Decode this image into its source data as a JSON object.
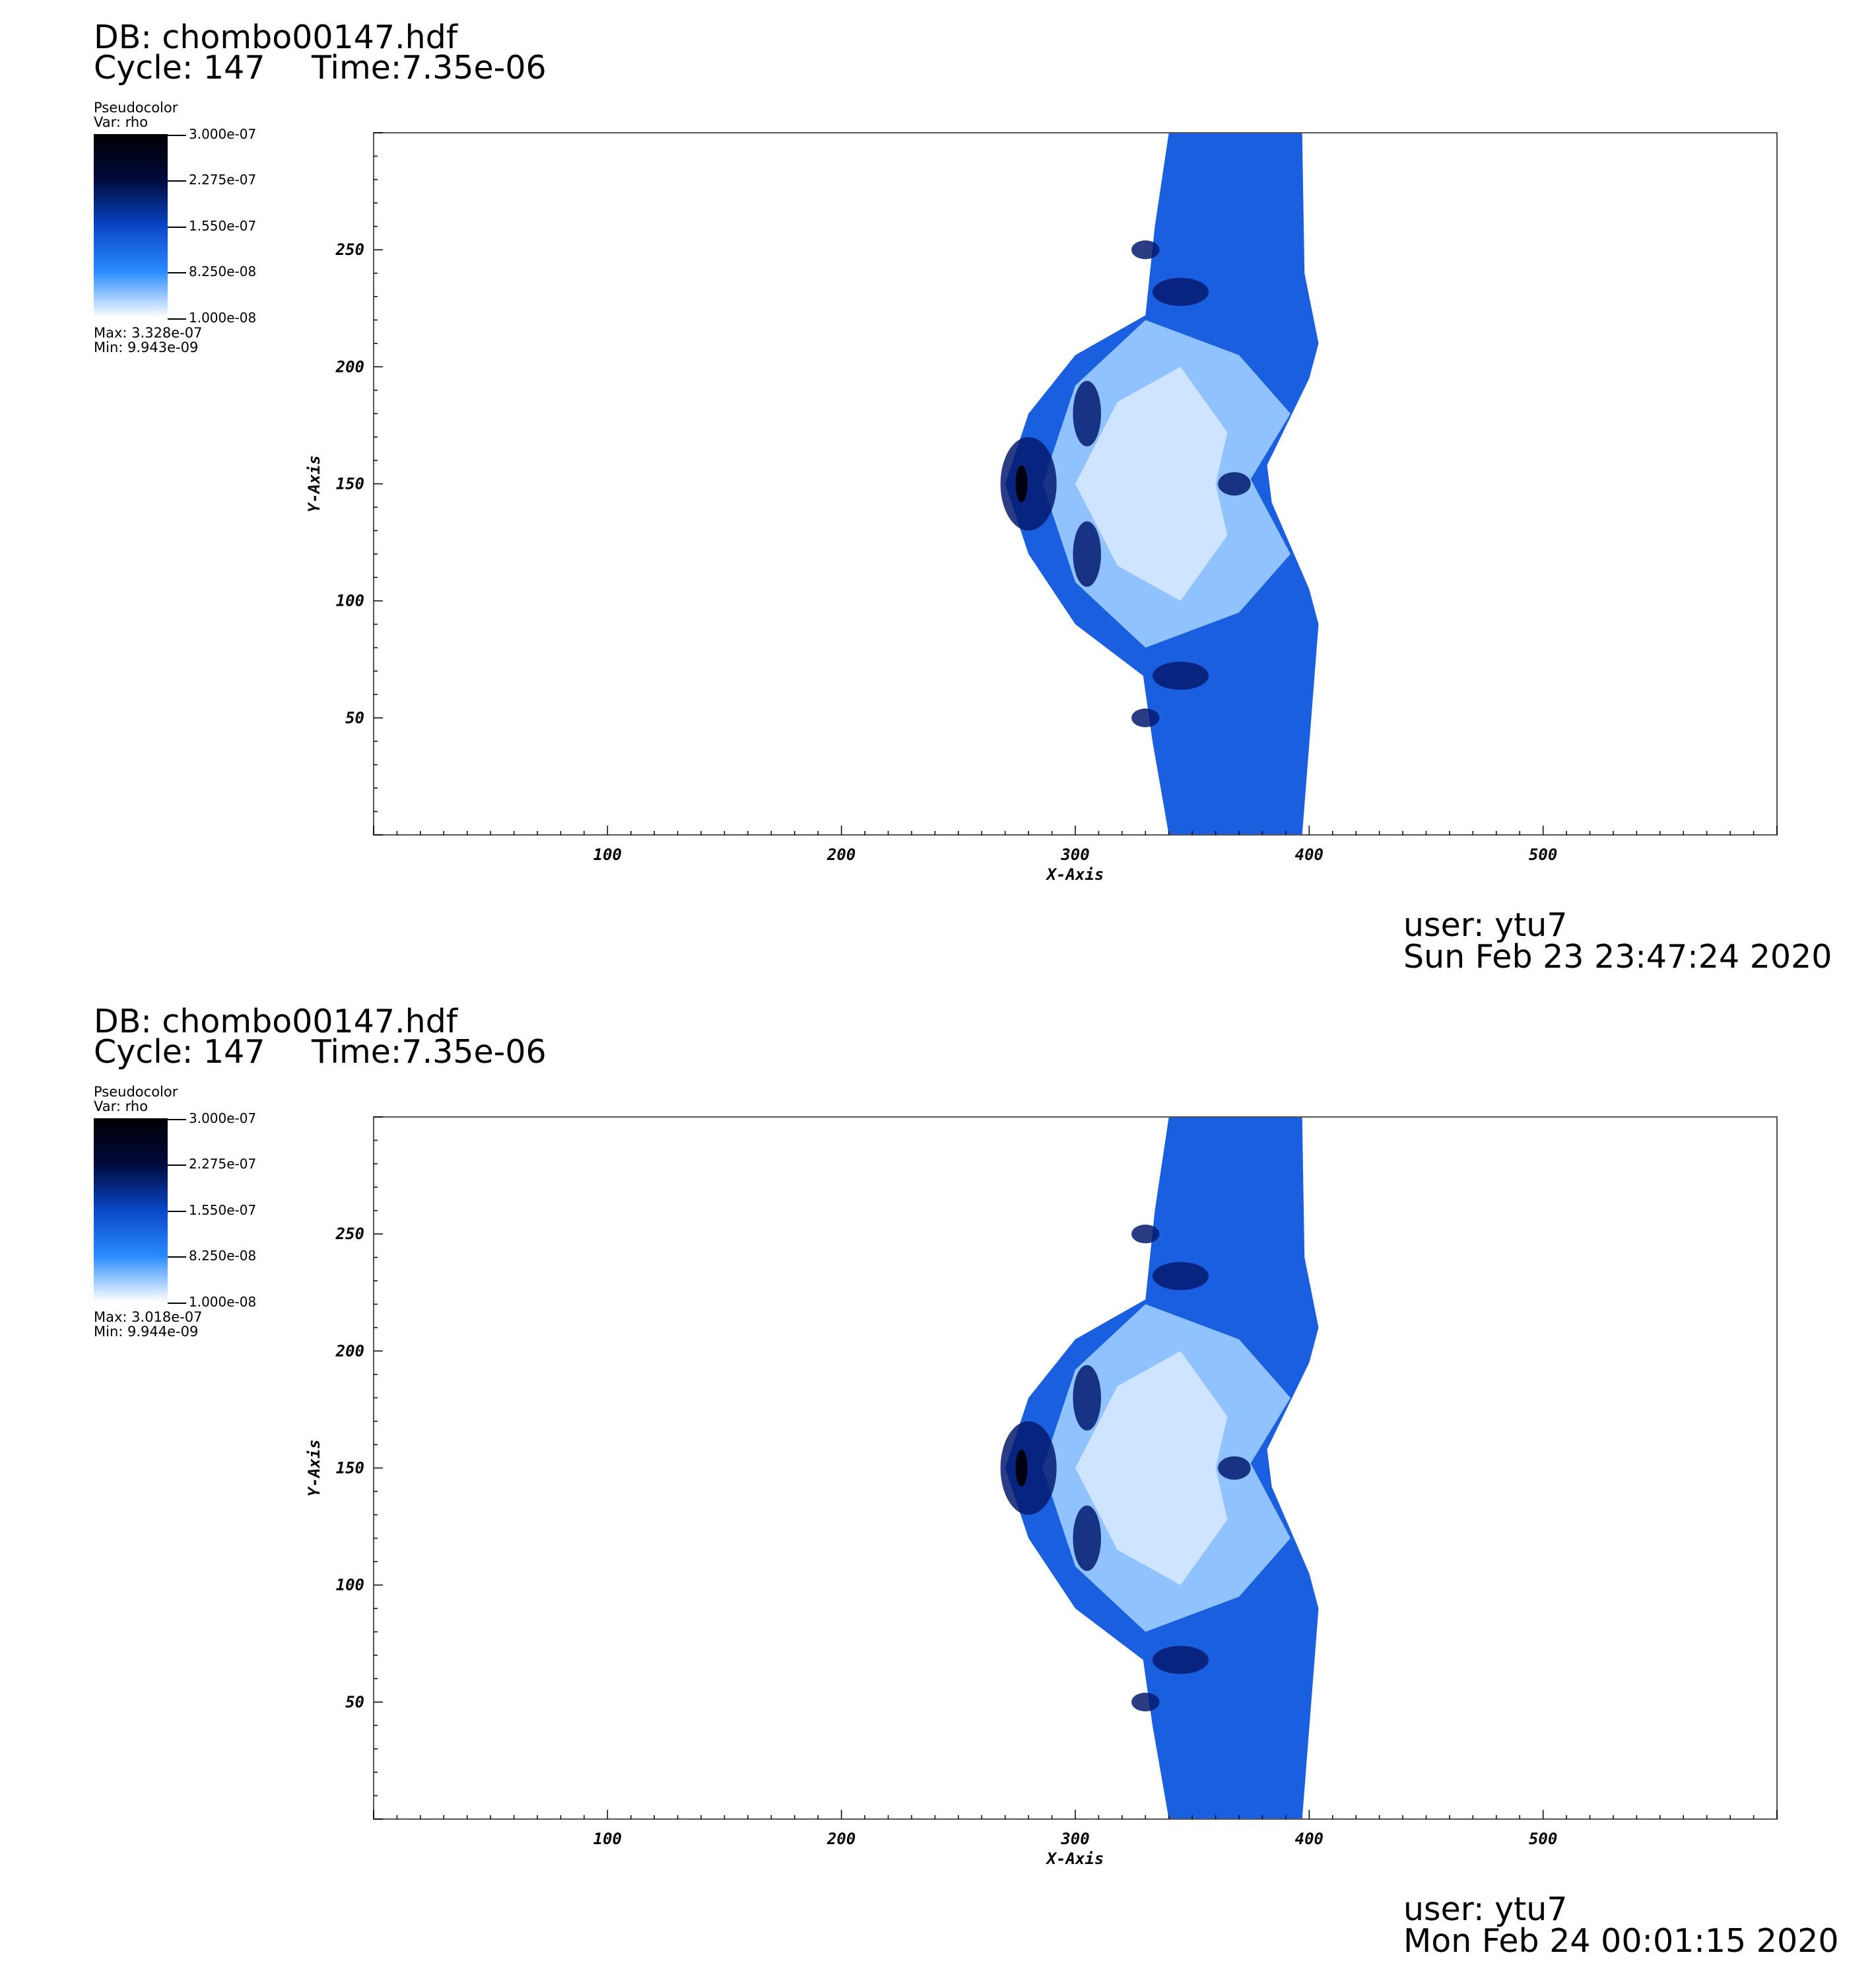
{
  "panels": [
    {
      "db": "DB: chombo00147.hdf",
      "cycle": "Cycle: 147",
      "time": "Time:7.35e-06",
      "legend": {
        "plot_type": "Pseudocolor",
        "var": "Var: rho",
        "ticks": [
          "3.000e-07",
          "2.275e-07",
          "1.550e-07",
          "8.250e-08",
          "1.000e-08"
        ],
        "max": "Max:  3.328e-07",
        "min": "Min:  9.943e-09"
      },
      "user": "user: ytu7",
      "date": "Sun Feb 23 23:47:24 2020"
    },
    {
      "db": "DB: chombo00147.hdf",
      "cycle": "Cycle: 147",
      "time": "Time:7.35e-06",
      "legend": {
        "plot_type": "Pseudocolor",
        "var": "Var: rho",
        "ticks": [
          "3.000e-07",
          "2.275e-07",
          "1.550e-07",
          "8.250e-08",
          "1.000e-08"
        ],
        "max": "Max:  3.018e-07",
        "min": "Min:  9.944e-09"
      },
      "user": "user: ytu7",
      "date": "Mon Feb 24 00:01:15 2020"
    }
  ],
  "chart_data": [
    {
      "type": "heatmap",
      "variable": "rho",
      "colormap": [
        "#000000",
        "#000a3c",
        "#0a46c8",
        "#2a8cff",
        "#ffffff"
      ],
      "xlabel": "X-Axis",
      "ylabel": "Y-Axis",
      "xlim": [
        0,
        600
      ],
      "ylim": [
        0,
        300
      ],
      "xticks": [
        100,
        200,
        300,
        400,
        500
      ],
      "yticks": [
        50,
        100,
        150,
        200,
        250
      ],
      "colorbar_range": [
        1e-08,
        3e-07
      ]
    },
    {
      "type": "heatmap",
      "variable": "rho",
      "colormap": [
        "#000000",
        "#000a3c",
        "#0a46c8",
        "#2a8cff",
        "#ffffff"
      ],
      "xlabel": "X-Axis",
      "ylabel": "Y-Axis",
      "xlim": [
        0,
        600
      ],
      "ylim": [
        0,
        300
      ],
      "xticks": [
        100,
        200,
        300,
        400,
        500
      ],
      "yticks": [
        50,
        100,
        150,
        200,
        250
      ],
      "colorbar_range": [
        1e-08,
        3e-07
      ]
    }
  ]
}
